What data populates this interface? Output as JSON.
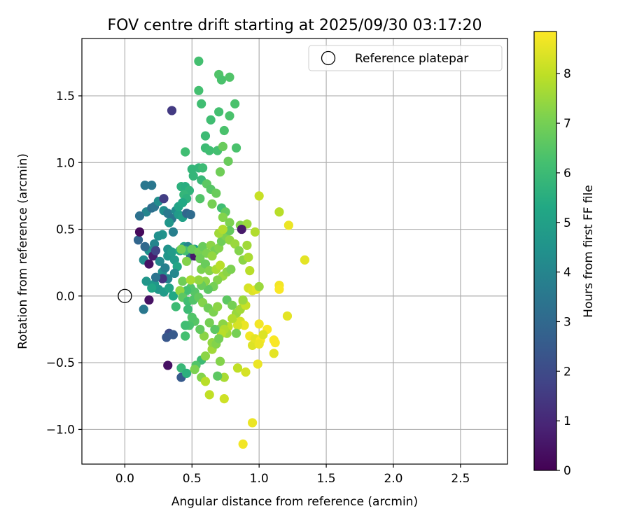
{
  "chart_data": {
    "type": "scatter",
    "title": "FOV centre drift starting at 2025/09/30 03:17:20",
    "xlabel": "Angular distance from reference (arcmin)",
    "ylabel": "Rotation from reference (arcmin)",
    "xlim": [
      -0.32,
      2.85
    ],
    "ylim": [
      -1.26,
      1.93
    ],
    "xticks": [
      0.0,
      0.5,
      1.0,
      1.5,
      2.0,
      2.5
    ],
    "xtick_labels": [
      "0.0",
      "0.5",
      "1.0",
      "1.5",
      "2.0",
      "2.5"
    ],
    "yticks": [
      -1.0,
      -0.5,
      0.0,
      0.5,
      1.0,
      1.5
    ],
    "ytick_labels": [
      "−1.0",
      "−0.5",
      "0.0",
      "0.5",
      "1.0",
      "1.5"
    ],
    "grid": true,
    "legend": {
      "position": "top-right",
      "entries": [
        "Reference platepar"
      ]
    },
    "colormap": "viridis",
    "colorbar": {
      "label": "Hours from first FF file",
      "range": [
        0,
        8.85
      ],
      "ticks": [
        0,
        1,
        2,
        3,
        4,
        5,
        6,
        7,
        8
      ],
      "tick_labels": [
        "0",
        "1",
        "2",
        "3",
        "4",
        "5",
        "6",
        "7",
        "8"
      ]
    },
    "reference": {
      "x": 0.0,
      "y": 0.0
    },
    "points": [
      [
        0.35,
        1.39,
        1.5
      ],
      [
        0.55,
        1.76,
        6.2
      ],
      [
        0.7,
        1.66,
        6.4
      ],
      [
        0.72,
        1.62,
        6.3
      ],
      [
        0.78,
        1.64,
        6.4
      ],
      [
        0.55,
        1.54,
        6.2
      ],
      [
        0.57,
        1.44,
        6.1
      ],
      [
        0.82,
        1.44,
        6.3
      ],
      [
        0.64,
        1.32,
        6.1
      ],
      [
        0.7,
        1.38,
        6.2
      ],
      [
        0.78,
        1.35,
        6.3
      ],
      [
        0.74,
        1.24,
        6.3
      ],
      [
        0.6,
        1.2,
        6.0
      ],
      [
        0.6,
        1.11,
        6.0
      ],
      [
        0.63,
        1.09,
        6.1
      ],
      [
        0.69,
        1.09,
        6.2
      ],
      [
        0.73,
        1.12,
        6.8
      ],
      [
        0.83,
        1.11,
        6.3
      ],
      [
        0.45,
        1.08,
        6.1
      ],
      [
        0.77,
        1.01,
        6.8
      ],
      [
        0.5,
        0.95,
        5.8
      ],
      [
        0.55,
        0.96,
        5.8
      ],
      [
        0.58,
        0.96,
        6.0
      ],
      [
        0.71,
        0.93,
        6.9
      ],
      [
        0.51,
        0.9,
        5.8
      ],
      [
        0.57,
        0.87,
        5.9
      ],
      [
        0.61,
        0.84,
        6.6
      ],
      [
        0.64,
        0.8,
        6.5
      ],
      [
        0.68,
        0.77,
        6.8
      ],
      [
        0.42,
        0.82,
        5.6
      ],
      [
        0.45,
        0.82,
        5.5
      ],
      [
        0.48,
        0.79,
        5.7
      ],
      [
        0.44,
        0.76,
        5.8
      ],
      [
        0.46,
        0.73,
        5.6
      ],
      [
        0.56,
        0.73,
        6.4
      ],
      [
        0.65,
        0.69,
        7.0
      ],
      [
        0.72,
        0.66,
        6.1
      ],
      [
        0.75,
        0.63,
        6.7
      ],
      [
        0.73,
        0.59,
        7.2
      ],
      [
        0.78,
        0.55,
        7.1
      ],
      [
        0.86,
        0.53,
        7.2
      ],
      [
        0.91,
        0.54,
        7.5
      ],
      [
        0.97,
        0.48,
        7.8
      ],
      [
        0.87,
        0.5,
        0.6
      ],
      [
        1.0,
        0.75,
        8.1
      ],
      [
        1.15,
        0.63,
        7.9
      ],
      [
        1.22,
        0.53,
        8.6
      ],
      [
        1.34,
        0.27,
        8.5
      ],
      [
        1.15,
        0.08,
        8.7
      ],
      [
        1.15,
        0.05,
        8.8
      ],
      [
        1.21,
        -0.15,
        8.5
      ],
      [
        0.15,
        0.83,
        3.5
      ],
      [
        0.2,
        0.83,
        3.5
      ],
      [
        0.16,
        0.63,
        4.0
      ],
      [
        0.11,
        0.6,
        3.3
      ],
      [
        0.2,
        0.66,
        3.2
      ],
      [
        0.22,
        0.67,
        3.4
      ],
      [
        0.25,
        0.71,
        4.3
      ],
      [
        0.29,
        0.73,
        1.6
      ],
      [
        0.29,
        0.64,
        4.3
      ],
      [
        0.32,
        0.62,
        3.6
      ],
      [
        0.35,
        0.58,
        3.4
      ],
      [
        0.38,
        0.64,
        4.2
      ],
      [
        0.4,
        0.61,
        4.8
      ],
      [
        0.43,
        0.59,
        5.0
      ],
      [
        0.46,
        0.62,
        2.9
      ],
      [
        0.49,
        0.61,
        3.1
      ],
      [
        0.4,
        0.67,
        5.1
      ],
      [
        0.43,
        0.7,
        5.3
      ],
      [
        0.33,
        0.55,
        4.6
      ],
      [
        0.36,
        0.48,
        3.8
      ],
      [
        0.28,
        0.46,
        4.5
      ],
      [
        0.25,
        0.45,
        4.4
      ],
      [
        0.22,
        0.39,
        4.0
      ],
      [
        0.18,
        0.34,
        4.4
      ],
      [
        0.15,
        0.37,
        3.0
      ],
      [
        0.1,
        0.42,
        2.9
      ],
      [
        0.11,
        0.48,
        0.2
      ],
      [
        0.14,
        0.27,
        4.2
      ],
      [
        0.18,
        0.24,
        0.4
      ],
      [
        0.21,
        0.3,
        0.7
      ],
      [
        0.23,
        0.34,
        1.8
      ],
      [
        0.26,
        0.26,
        4.1
      ],
      [
        0.28,
        0.18,
        4.4
      ],
      [
        0.3,
        0.21,
        3.8
      ],
      [
        0.32,
        0.3,
        4.6
      ],
      [
        0.32,
        0.35,
        4.5
      ],
      [
        0.35,
        0.33,
        4.8
      ],
      [
        0.37,
        0.27,
        4.8
      ],
      [
        0.39,
        0.22,
        5.2
      ],
      [
        0.41,
        0.34,
        5.3
      ],
      [
        0.44,
        0.37,
        5.0
      ],
      [
        0.47,
        0.37,
        4.0
      ],
      [
        0.49,
        0.3,
        3.3
      ],
      [
        0.52,
        0.3,
        0.6
      ],
      [
        0.52,
        0.35,
        5.0
      ],
      [
        0.37,
        0.17,
        4.1
      ],
      [
        0.32,
        0.13,
        4.0
      ],
      [
        0.28,
        0.13,
        1.3
      ],
      [
        0.25,
        0.05,
        4.6
      ],
      [
        0.22,
        0.09,
        4.7
      ],
      [
        0.2,
        0.06,
        5.2
      ],
      [
        0.16,
        0.11,
        4.6
      ],
      [
        0.23,
        0.14,
        3.4
      ],
      [
        0.29,
        0.03,
        4.8
      ],
      [
        0.33,
        0.06,
        5.1
      ],
      [
        0.36,
        0.0,
        5.3
      ],
      [
        0.18,
        -0.03,
        0.4
      ],
      [
        0.14,
        -0.1,
        3.5
      ],
      [
        0.38,
        -0.08,
        6.0
      ],
      [
        0.33,
        -0.28,
        2.0
      ],
      [
        0.31,
        -0.31,
        2.4
      ],
      [
        0.36,
        -0.29,
        2.5
      ],
      [
        0.32,
        -0.52,
        0.4
      ],
      [
        0.42,
        -0.54,
        5.9
      ],
      [
        0.42,
        -0.61,
        2.5
      ],
      [
        0.46,
        -0.58,
        5.6
      ],
      [
        0.45,
        0.34,
        6.2
      ],
      [
        0.42,
        0.35,
        7.0
      ],
      [
        0.46,
        0.26,
        7.2
      ],
      [
        0.5,
        0.35,
        6.8
      ],
      [
        0.55,
        0.33,
        7.0
      ],
      [
        0.58,
        0.37,
        6.8
      ],
      [
        0.61,
        0.32,
        7.1
      ],
      [
        0.64,
        0.38,
        7.3
      ],
      [
        0.67,
        0.34,
        7.0
      ],
      [
        0.7,
        0.36,
        7.2
      ],
      [
        0.72,
        0.41,
        6.9
      ],
      [
        0.75,
        0.45,
        7.1
      ],
      [
        0.78,
        0.49,
        6.7
      ],
      [
        0.7,
        0.47,
        7.6
      ],
      [
        0.73,
        0.5,
        7.8
      ],
      [
        0.78,
        0.42,
        7.4
      ],
      [
        0.82,
        0.39,
        7.5
      ],
      [
        0.85,
        0.34,
        7.2
      ],
      [
        0.88,
        0.27,
        7.3
      ],
      [
        0.91,
        0.38,
        7.6
      ],
      [
        0.92,
        0.29,
        7.7
      ],
      [
        0.56,
        0.28,
        6.9
      ],
      [
        0.57,
        0.2,
        7.1
      ],
      [
        0.6,
        0.24,
        6.8
      ],
      [
        0.63,
        0.19,
        7.2
      ],
      [
        0.65,
        0.3,
        7.4
      ],
      [
        0.68,
        0.2,
        7.7
      ],
      [
        0.71,
        0.23,
        7.9
      ],
      [
        0.73,
        0.15,
        7.5
      ],
      [
        0.76,
        0.18,
        7.3
      ],
      [
        0.79,
        0.2,
        7.1
      ],
      [
        0.69,
        0.12,
        7.2
      ],
      [
        0.66,
        0.07,
        7.0
      ],
      [
        0.62,
        0.05,
        6.6
      ],
      [
        0.6,
        0.11,
        7.3
      ],
      [
        0.57,
        0.08,
        6.8
      ],
      [
        0.55,
        0.12,
        7.4
      ],
      [
        0.52,
        0.03,
        6.5
      ],
      [
        0.49,
        0.06,
        6.4
      ],
      [
        0.46,
        0.04,
        6.2
      ],
      [
        0.43,
        0.11,
        6.9
      ],
      [
        0.41,
        0.04,
        7.4
      ],
      [
        0.49,
        0.12,
        7.7
      ],
      [
        0.43,
        -0.01,
        6.6
      ],
      [
        0.47,
        -0.04,
        6.1
      ],
      [
        0.51,
        -0.03,
        6.4
      ],
      [
        0.55,
        -0.01,
        6.7
      ],
      [
        0.58,
        -0.05,
        7.2
      ],
      [
        0.62,
        -0.09,
        6.9
      ],
      [
        0.66,
        -0.12,
        7.1
      ],
      [
        0.69,
        -0.08,
        7.3
      ],
      [
        0.76,
        -0.03,
        6.6
      ],
      [
        0.8,
        -0.07,
        7.0
      ],
      [
        0.83,
        -0.13,
        7.5
      ],
      [
        0.86,
        -0.1,
        7.6
      ],
      [
        0.88,
        -0.04,
        7.9
      ],
      [
        0.9,
        -0.07,
        8.1
      ],
      [
        0.92,
        0.06,
        8.3
      ],
      [
        0.95,
        0.04,
        8.4
      ],
      [
        0.98,
        0.05,
        8.5
      ],
      [
        1.0,
        0.07,
        7.5
      ],
      [
        0.86,
        -0.19,
        8.3
      ],
      [
        0.89,
        -0.22,
        8.6
      ],
      [
        0.84,
        -0.22,
        8.3
      ],
      [
        0.8,
        -0.17,
        7.8
      ],
      [
        0.77,
        -0.23,
        8.0
      ],
      [
        0.73,
        -0.21,
        7.3
      ],
      [
        0.7,
        -0.25,
        7.2
      ],
      [
        0.76,
        -0.28,
        7.6
      ],
      [
        0.74,
        -0.25,
        7.8
      ],
      [
        0.72,
        -0.28,
        7.9
      ],
      [
        0.67,
        -0.25,
        6.6
      ],
      [
        0.63,
        -0.2,
        7.0
      ],
      [
        0.59,
        -0.3,
        7.3
      ],
      [
        0.56,
        -0.25,
        6.7
      ],
      [
        0.52,
        -0.19,
        6.5
      ],
      [
        0.48,
        -0.22,
        6.3
      ],
      [
        0.45,
        -0.22,
        6.1
      ],
      [
        0.47,
        -0.1,
        6.0
      ],
      [
        0.5,
        -0.16,
        6.4
      ],
      [
        0.45,
        -0.3,
        6.2
      ],
      [
        0.57,
        -0.48,
        6.0
      ],
      [
        0.53,
        -0.52,
        6.4
      ],
      [
        0.52,
        -0.55,
        7.1
      ],
      [
        0.57,
        -0.61,
        7.2
      ],
      [
        0.6,
        -0.45,
        7.3
      ],
      [
        0.65,
        -0.4,
        7.6
      ],
      [
        0.65,
        -0.35,
        7.4
      ],
      [
        0.68,
        -0.36,
        7.2
      ],
      [
        0.7,
        -0.32,
        7.0
      ],
      [
        0.71,
        -0.49,
        7.2
      ],
      [
        0.74,
        -0.61,
        7.7
      ],
      [
        0.69,
        -0.6,
        6.6
      ],
      [
        0.74,
        -0.77,
        8.2
      ],
      [
        0.63,
        -0.74,
        8.0
      ],
      [
        0.6,
        -0.64,
        7.9
      ],
      [
        0.83,
        -0.28,
        7.0
      ],
      [
        0.84,
        -0.54,
        8.0
      ],
      [
        0.9,
        -0.57,
        8.3
      ],
      [
        0.93,
        -0.3,
        8.7
      ],
      [
        0.95,
        -0.37,
        8.4
      ],
      [
        0.97,
        -0.32,
        8.5
      ],
      [
        0.99,
        -0.51,
        8.6
      ],
      [
        1.0,
        -0.21,
        8.7
      ],
      [
        1.01,
        -0.33,
        8.8
      ],
      [
        1.0,
        -0.36,
        8.6
      ],
      [
        1.06,
        -0.25,
        8.8
      ],
      [
        1.03,
        -0.29,
        8.4
      ],
      [
        1.11,
        -0.33,
        8.8
      ],
      [
        1.12,
        -0.35,
        8.8
      ],
      [
        1.11,
        -0.43,
        8.5
      ],
      [
        0.95,
        -0.95,
        8.6
      ],
      [
        0.88,
        -1.11,
        8.7
      ],
      [
        0.88,
        -0.03,
        7.5
      ],
      [
        0.93,
        0.19,
        7.9
      ]
    ]
  }
}
